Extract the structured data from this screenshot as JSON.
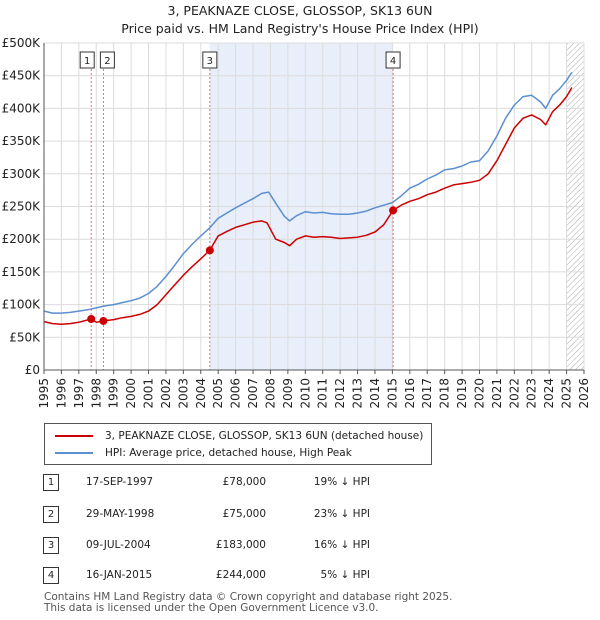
{
  "chart_data": {
    "type": "line",
    "title": "3, PEAKNAZE CLOSE, GLOSSOP, SK13 6UN",
    "subtitle": "Price paid vs. HM Land Registry's House Price Index (HPI)",
    "xlim": [
      1995,
      2026
    ],
    "ylim": [
      0,
      500000
    ],
    "y_ticks": [
      {
        "value": 0,
        "label": "£0"
      },
      {
        "value": 50000,
        "label": "£50K"
      },
      {
        "value": 100000,
        "label": "£100K"
      },
      {
        "value": 150000,
        "label": "£150K"
      },
      {
        "value": 200000,
        "label": "£200K"
      },
      {
        "value": 250000,
        "label": "£250K"
      },
      {
        "value": 300000,
        "label": "£300K"
      },
      {
        "value": 350000,
        "label": "£350K"
      },
      {
        "value": 400000,
        "label": "£400K"
      },
      {
        "value": 450000,
        "label": "£450K"
      },
      {
        "value": 500000,
        "label": "£500K"
      }
    ],
    "x_ticks": [
      "1995",
      "1996",
      "1997",
      "1998",
      "1999",
      "2000",
      "2001",
      "2002",
      "2003",
      "2004",
      "2005",
      "2006",
      "2007",
      "2008",
      "2009",
      "2010",
      "2011",
      "2012",
      "2013",
      "2014",
      "2015",
      "2016",
      "2017",
      "2018",
      "2019",
      "2020",
      "2021",
      "2022",
      "2023",
      "2024",
      "2025",
      "2026"
    ],
    "grid": true,
    "shaded_region": [
      2004.52,
      2015.04
    ],
    "hatch_start": 2025.0,
    "series": [
      {
        "name": "3, PEAKNAZE CLOSE, GLOSSOP, SK13 6UN (detached house)",
        "color": "#cc0000",
        "x": [
          1995.0,
          1995.5,
          1996.0,
          1996.5,
          1997.0,
          1997.71,
          1998.0,
          1998.41,
          1999.0,
          1999.5,
          2000.0,
          2000.5,
          2001.0,
          2001.5,
          2002.0,
          2002.5,
          2003.0,
          2003.5,
          2004.0,
          2004.52,
          2005.0,
          2005.5,
          2006.0,
          2006.5,
          2007.0,
          2007.5,
          2007.8,
          2008.3,
          2008.8,
          2009.1,
          2009.5,
          2010.0,
          2010.5,
          2011.0,
          2011.5,
          2012.0,
          2012.5,
          2013.0,
          2013.5,
          2014.0,
          2014.5,
          2015.04,
          2015.5,
          2016.0,
          2016.5,
          2017.0,
          2017.5,
          2018.0,
          2018.5,
          2019.0,
          2019.5,
          2020.0,
          2020.5,
          2021.0,
          2021.5,
          2022.0,
          2022.5,
          2023.0,
          2023.5,
          2023.8,
          2024.2,
          2024.6,
          2025.0,
          2025.3
        ],
        "y": [
          74000,
          71000,
          70000,
          71000,
          73000,
          78000,
          73000,
          75000,
          77000,
          80000,
          82000,
          85000,
          90000,
          100000,
          115000,
          130000,
          145000,
          158000,
          170000,
          183000,
          205000,
          212000,
          218000,
          222000,
          226000,
          228000,
          225000,
          200000,
          195000,
          190000,
          200000,
          205000,
          203000,
          204000,
          203000,
          201000,
          202000,
          203000,
          206000,
          211000,
          222000,
          244000,
          252000,
          258000,
          262000,
          268000,
          272000,
          278000,
          283000,
          285000,
          287000,
          290000,
          300000,
          320000,
          345000,
          370000,
          385000,
          390000,
          383000,
          375000,
          395000,
          405000,
          418000,
          432000
        ]
      },
      {
        "name": "HPI: Average price, detached house, High Peak",
        "color": "#5b8fd0",
        "x": [
          1995.0,
          1995.5,
          1996.0,
          1996.5,
          1997.0,
          1997.5,
          1998.0,
          1998.5,
          1999.0,
          1999.5,
          2000.0,
          2000.5,
          2001.0,
          2001.5,
          2002.0,
          2002.5,
          2003.0,
          2003.5,
          2004.0,
          2004.5,
          2005.0,
          2005.5,
          2006.0,
          2006.5,
          2007.0,
          2007.5,
          2007.9,
          2008.3,
          2008.8,
          2009.1,
          2009.5,
          2010.0,
          2010.5,
          2011.0,
          2011.5,
          2012.0,
          2012.5,
          2013.0,
          2013.5,
          2014.0,
          2014.5,
          2015.0,
          2015.5,
          2016.0,
          2016.5,
          2017.0,
          2017.5,
          2018.0,
          2018.5,
          2019.0,
          2019.5,
          2020.0,
          2020.5,
          2021.0,
          2021.5,
          2022.0,
          2022.5,
          2023.0,
          2023.5,
          2023.8,
          2024.2,
          2024.6,
          2025.0,
          2025.3
        ],
        "y": [
          90000,
          87000,
          87000,
          88000,
          90000,
          92000,
          95000,
          98000,
          100000,
          103000,
          106000,
          110000,
          117000,
          128000,
          143000,
          160000,
          178000,
          192000,
          205000,
          217000,
          232000,
          240000,
          248000,
          255000,
          262000,
          270000,
          272000,
          255000,
          235000,
          228000,
          236000,
          242000,
          240000,
          241000,
          239000,
          238000,
          238000,
          240000,
          243000,
          248000,
          252000,
          256000,
          266000,
          278000,
          284000,
          292000,
          298000,
          306000,
          308000,
          312000,
          318000,
          320000,
          335000,
          358000,
          385000,
          405000,
          418000,
          420000,
          410000,
          400000,
          420000,
          430000,
          443000,
          455000
        ]
      }
    ],
    "sales": [
      {
        "label": "1",
        "x": 1997.71,
        "price": 78000,
        "date": "17-SEP-1997",
        "price_label": "£78,000",
        "hpi_label": "19% ↓ HPI"
      },
      {
        "label": "2",
        "x": 1998.41,
        "price": 75000,
        "date": "29-MAY-1998",
        "price_label": "£75,000",
        "hpi_label": "23% ↓ HPI"
      },
      {
        "label": "3",
        "x": 2004.52,
        "price": 183000,
        "date": "09-JUL-2004",
        "price_label": "£183,000",
        "hpi_label": "16% ↓ HPI"
      },
      {
        "label": "4",
        "x": 2015.04,
        "price": 244000,
        "date": "16-JAN-2015",
        "price_label": "£244,000",
        "hpi_label": "5% ↓ HPI"
      }
    ]
  },
  "legend": {
    "property_label": "3, PEAKNAZE CLOSE, GLOSSOP, SK13 6UN (detached house)",
    "hpi_label": "HPI: Average price, detached house, High Peak"
  },
  "footer": {
    "line1": "Contains HM Land Registry data © Crown copyright and database right 2025.",
    "line2": "This data is licensed under the Open Government Licence v3.0."
  }
}
